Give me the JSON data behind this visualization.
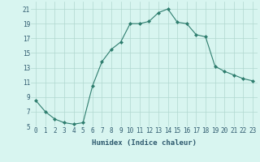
{
  "x": [
    0,
    1,
    2,
    3,
    4,
    5,
    6,
    7,
    8,
    9,
    10,
    11,
    12,
    13,
    14,
    15,
    16,
    17,
    18,
    19,
    20,
    21,
    22,
    23
  ],
  "y": [
    8.5,
    7.0,
    6.0,
    5.5,
    5.3,
    5.5,
    10.5,
    13.8,
    15.5,
    16.5,
    19.0,
    19.0,
    19.3,
    20.5,
    21.0,
    19.2,
    19.0,
    17.5,
    17.2,
    13.2,
    12.5,
    12.0,
    11.5,
    11.2
  ],
  "line_color": "#2e7d6e",
  "marker": "D",
  "marker_size": 2,
  "bg_color": "#d8f5f0",
  "grid_color": "#b0d8d0",
  "xlabel": "Humidex (Indice chaleur)",
  "ylim": [
    5,
    22
  ],
  "yticks": [
    5,
    7,
    9,
    11,
    13,
    15,
    17,
    19,
    21
  ],
  "font_color": "#2e5a6e",
  "xlabel_fontsize": 6.5,
  "tick_fontsize": 5.5
}
